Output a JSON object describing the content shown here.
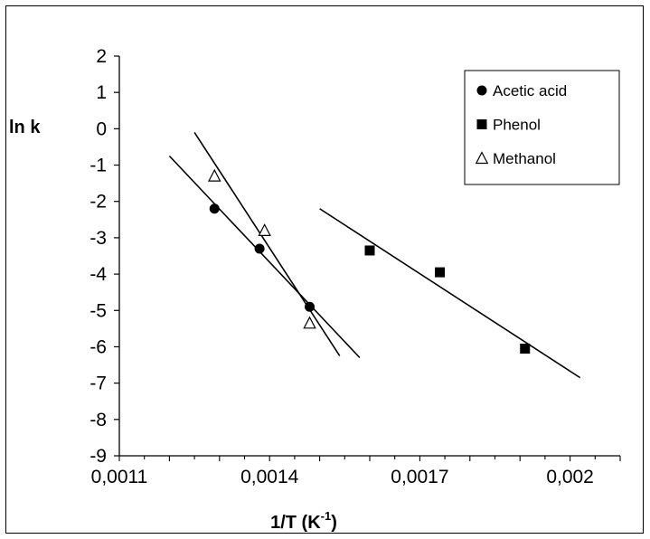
{
  "chart_data": {
    "type": "scatter",
    "title": "",
    "xlabel": "1/T (K",
    "xlabel_sup": "-1",
    "xlabel_end": ")",
    "ylabel": "ln k",
    "xlim": [
      0.0011,
      0.0021
    ],
    "ylim": [
      -9,
      2
    ],
    "x_ticks": [
      0.0011,
      0.0014,
      0.0017,
      0.002
    ],
    "x_tick_labels": [
      "0,0011",
      "0,0014",
      "0,0017",
      "0,002"
    ],
    "y_ticks": [
      2,
      1,
      0,
      -1,
      -2,
      -3,
      -4,
      -5,
      -6,
      -7,
      -8,
      -9
    ],
    "y_tick_labels": [
      "2",
      "1",
      "0",
      "-1",
      "-2",
      "-3",
      "-4",
      "-5",
      "-6",
      "-7",
      "-8",
      "-9"
    ],
    "grid": false,
    "legend_position": "top-right",
    "series": [
      {
        "name": "Acetic acid",
        "marker": "circle",
        "color": "#000000",
        "points": [
          [
            0.00129,
            -2.2
          ],
          [
            0.00138,
            -3.3
          ],
          [
            0.00148,
            -4.9
          ]
        ],
        "trendline": [
          [
            0.0012,
            -0.75
          ],
          [
            0.00158,
            -6.3
          ]
        ]
      },
      {
        "name": "Phenol",
        "marker": "square",
        "color": "#000000",
        "points": [
          [
            0.0016,
            -3.35
          ],
          [
            0.00174,
            -3.95
          ],
          [
            0.00191,
            -6.05
          ]
        ],
        "trendline": [
          [
            0.0015,
            -2.2
          ],
          [
            0.00202,
            -6.85
          ]
        ]
      },
      {
        "name": "Methanol",
        "marker": "triangle-open",
        "color": "#000000",
        "points": [
          [
            0.00129,
            -1.3
          ],
          [
            0.00139,
            -2.8
          ],
          [
            0.00148,
            -5.35
          ]
        ],
        "trendline": [
          [
            0.00125,
            -0.1
          ],
          [
            0.00154,
            -6.25
          ]
        ]
      }
    ]
  }
}
